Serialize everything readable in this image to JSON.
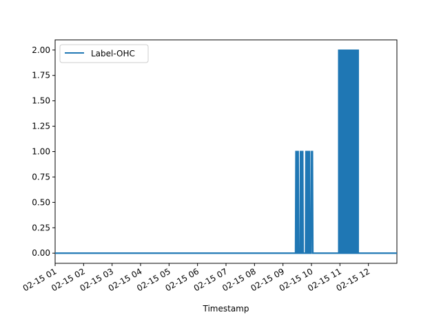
{
  "chart_data": {
    "type": "line",
    "xlabel": "Timestamp",
    "ylabel": "",
    "x_tick_labels": [
      "02-15 01",
      "02-15 02",
      "02-15 03",
      "02-15 04",
      "02-15 05",
      "02-15 06",
      "02-15 07",
      "02-15 08",
      "02-15 09",
      "02-15 10",
      "02-15 11",
      "02-15 12"
    ],
    "x_ticks_hours": [
      1,
      2,
      3,
      4,
      5,
      6,
      7,
      8,
      9,
      10,
      11,
      12
    ],
    "xlim_hours": [
      1.0,
      13.0
    ],
    "y_tick_labels": [
      "0.00",
      "0.25",
      "0.50",
      "0.75",
      "1.00",
      "1.25",
      "1.50",
      "1.75",
      "2.00"
    ],
    "y_ticks": [
      0,
      0.25,
      0.5,
      0.75,
      1.0,
      1.25,
      1.5,
      1.75,
      2.0
    ],
    "ylim": [
      -0.1,
      2.1
    ],
    "legend": {
      "position": "top-left",
      "entries": [
        "Label-OHC"
      ]
    },
    "grid": false,
    "series": [
      {
        "name": "Label-OHC",
        "color": "#1f77b4",
        "baseline": 0,
        "pulses_level_1_hours": [
          9.47,
          9.52,
          9.63,
          9.68,
          9.82,
          9.86,
          9.89,
          9.92,
          10.02
        ],
        "dense_band": {
          "start_hour": 10.95,
          "end_hour": 11.65,
          "min": 0,
          "max": 2
        }
      }
    ]
  }
}
